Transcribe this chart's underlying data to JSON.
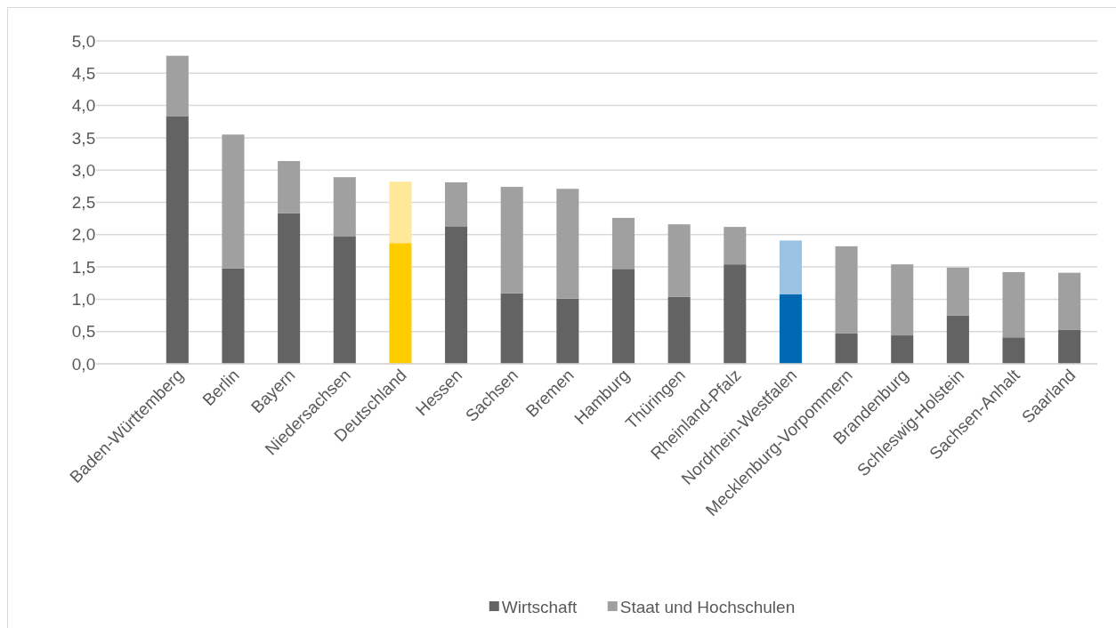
{
  "chart_data": {
    "type": "bar",
    "stacked": true,
    "categories": [
      "Baden-Württemberg",
      "Berlin",
      "Bayern",
      "Niedersachsen",
      "Deutschland",
      "Hessen",
      "Sachsen",
      "Bremen",
      "Hamburg",
      "Thüringen",
      "Rheinland-Pfalz",
      "Nordrhein-Westfalen",
      "Mecklenburg-Vorpommern",
      "Brandenburg",
      "Schleswig-Holstein",
      "Sachsen-Anhalt",
      "Saarland"
    ],
    "series": [
      {
        "name": "Wirtschaft",
        "color": "#636363",
        "colors": [
          "#636363",
          "#636363",
          "#636363",
          "#636363",
          "#ffcc00",
          "#636363",
          "#636363",
          "#636363",
          "#636363",
          "#636363",
          "#636363",
          "#0069b4",
          "#636363",
          "#636363",
          "#636363",
          "#636363",
          "#636363"
        ],
        "values": [
          3.83,
          1.48,
          2.33,
          1.97,
          1.87,
          2.13,
          1.09,
          1.01,
          1.47,
          1.04,
          1.54,
          1.08,
          0.47,
          0.44,
          0.75,
          0.41,
          0.53
        ]
      },
      {
        "name": "Staat und Hochschulen",
        "color": "#a0a0a0",
        "colors": [
          "#a0a0a0",
          "#a0a0a0",
          "#a0a0a0",
          "#a0a0a0",
          "#ffe999",
          "#a0a0a0",
          "#a0a0a0",
          "#a0a0a0",
          "#a0a0a0",
          "#a0a0a0",
          "#a0a0a0",
          "#9dc3e2",
          "#a0a0a0",
          "#a0a0a0",
          "#a0a0a0",
          "#a0a0a0",
          "#a0a0a0"
        ],
        "values": [
          0.94,
          2.07,
          0.81,
          0.92,
          0.95,
          0.68,
          1.65,
          1.7,
          0.79,
          1.12,
          0.58,
          0.83,
          1.35,
          1.1,
          0.74,
          1.01,
          0.88
        ]
      }
    ],
    "ylim": [
      0,
      5
    ],
    "yticks": [
      {
        "value": 0,
        "label": "0,0"
      },
      {
        "value": 0.5,
        "label": "0,5"
      },
      {
        "value": 1,
        "label": "1,0"
      },
      {
        "value": 1.5,
        "label": "1,5"
      },
      {
        "value": 2,
        "label": "2,0"
      },
      {
        "value": 2.5,
        "label": "2,5"
      },
      {
        "value": 3,
        "label": "3,0"
      },
      {
        "value": 3.5,
        "label": "3,5"
      },
      {
        "value": 4,
        "label": "4,0"
      },
      {
        "value": 4.5,
        "label": "4,5"
      },
      {
        "value": 5,
        "label": "5,0"
      }
    ],
    "grid": "y",
    "legend": "bottom"
  }
}
